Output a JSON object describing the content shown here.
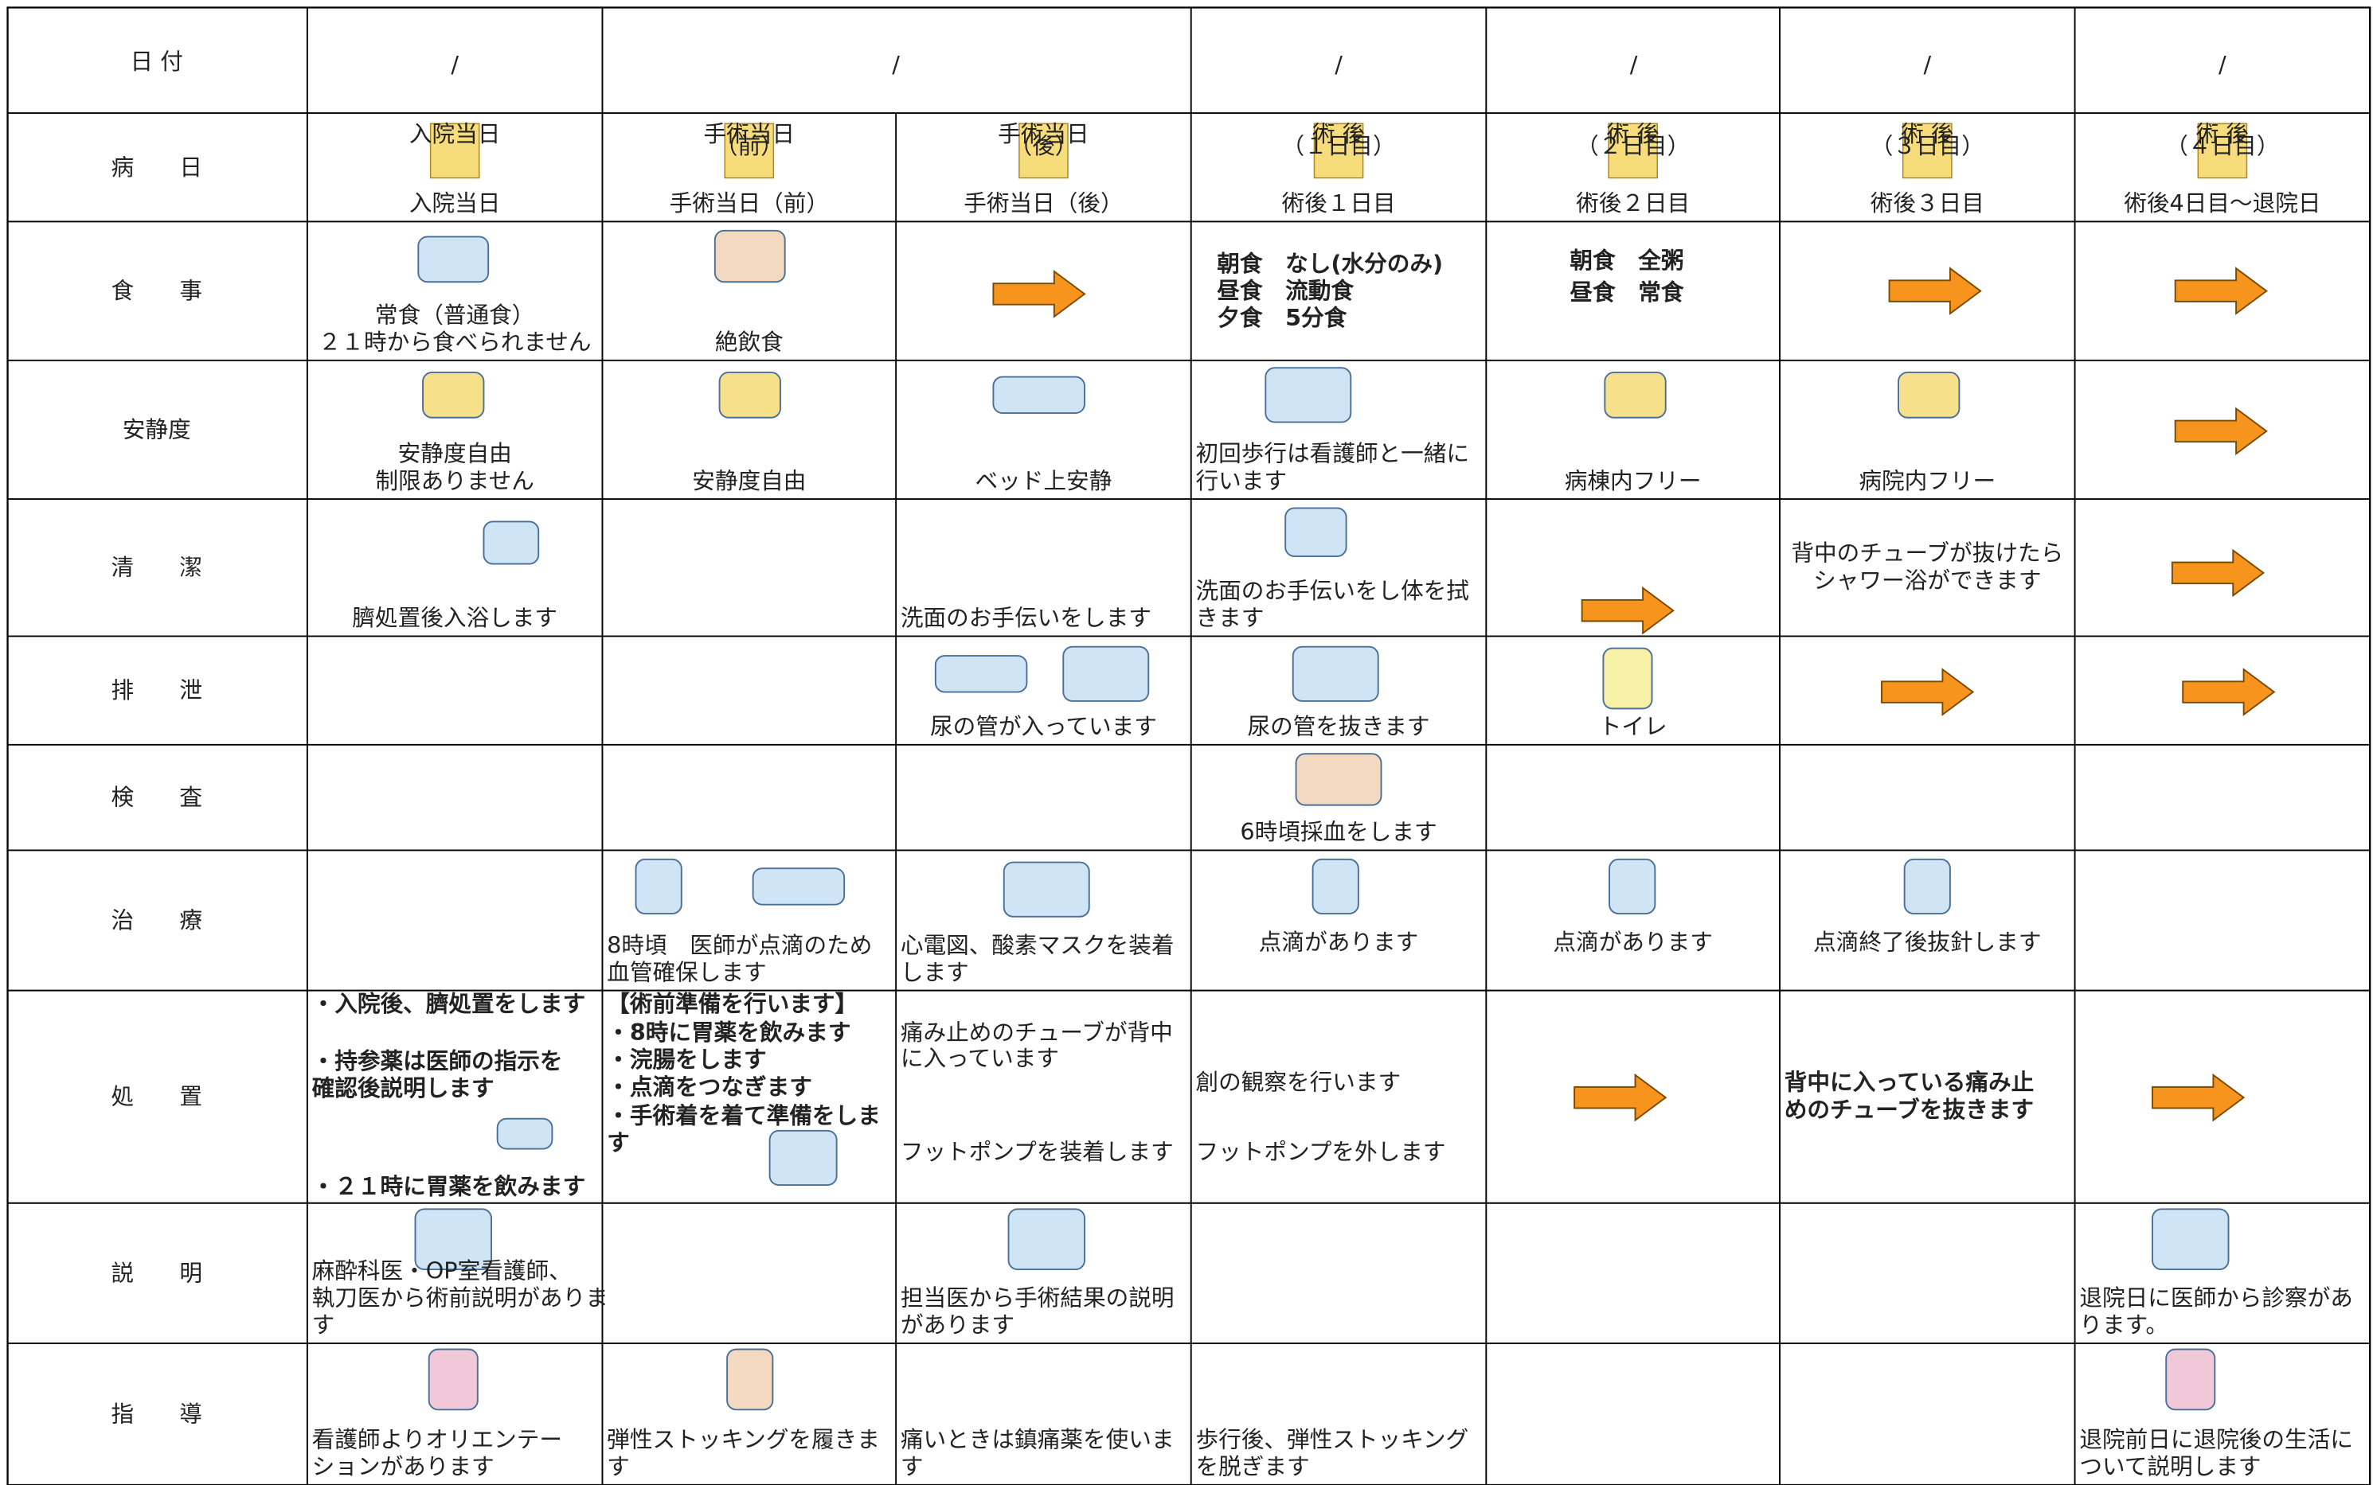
{
  "date": {
    "label": "日 付",
    "cells": [
      "/",
      "/",
      "/",
      "/",
      "/",
      "/"
    ]
  },
  "rows": [
    {
      "label": "病　　日",
      "badges": [
        [
          "入院当日"
        ],
        [
          "手術当日",
          "（前）"
        ],
        [
          "手術当日",
          "（後）"
        ],
        [
          "術 後",
          "（１日目）"
        ],
        [
          "術 後",
          "（２日目）"
        ],
        [
          "術 後",
          "（３日目）"
        ],
        [
          "術 後",
          "（４日目）"
        ]
      ],
      "cells": [
        [
          "入院当日"
        ],
        [
          "手術当日（前）"
        ],
        [
          "手術当日（後）"
        ],
        [
          "術後１日目"
        ],
        [
          "術後２日目"
        ],
        [
          "術後３日目"
        ],
        [
          "術後4日目〜退院日"
        ]
      ]
    },
    {
      "label": "食　　事",
      "cells": [
        [
          "常食（普通食）",
          "２１時から食べられません"
        ],
        [
          "絶飲食"
        ],
        [],
        [
          "朝食　なし(水分のみ)",
          "昼食　流動食",
          "夕食　5分食"
        ],
        [
          "朝食　全粥",
          "昼食　常食"
        ],
        [],
        []
      ]
    },
    {
      "label": "安静度",
      "cells": [
        [
          "安静度自由",
          "制限ありません"
        ],
        [
          "安静度自由"
        ],
        [
          "ベッド上安静"
        ],
        [
          "初回歩行は看護師と一緒に",
          "行います"
        ],
        [
          "病棟内フリー"
        ],
        [
          "病院内フリー"
        ],
        []
      ]
    },
    {
      "label": "清　　潔",
      "cells": [
        [
          "臍処置後入浴します"
        ],
        [],
        [
          "洗面のお手伝いをします"
        ],
        [
          "洗面のお手伝いをし体を拭",
          "きます"
        ],
        [],
        [
          "背中のチューブが抜けたら",
          "シャワー浴ができます"
        ],
        []
      ]
    },
    {
      "label": "排　　泄",
      "cells": [
        [],
        [],
        [
          "尿の管が入っています"
        ],
        [
          "尿の管を抜きます"
        ],
        [
          "トイレ"
        ],
        [],
        []
      ]
    },
    {
      "label": "検　　査",
      "cells": [
        [],
        [],
        [],
        [
          "6時頃採血をします"
        ],
        [],
        [],
        []
      ]
    },
    {
      "label": "治　　療",
      "cells": [
        [],
        [
          "8時頃　医師が点滴のため",
          "血管確保します"
        ],
        [
          "心電図、酸素マスクを装着",
          "します"
        ],
        [
          "点滴があります"
        ],
        [
          "点滴があります"
        ],
        [
          "点滴終了後抜針します"
        ],
        []
      ]
    },
    {
      "label": "処　　置",
      "cells": [
        [
          "・入院後、臍処置をします",
          "・持参薬は医師の指示を",
          "確認後説明します",
          "・２１時に胃薬を飲みます"
        ],
        [
          "【術前準備を行います】",
          "・8時に胃薬を飲みます",
          "・浣腸をします",
          "・点滴をつなぎます",
          "・手術着を着て準備をしま",
          "す"
        ],
        [
          "痛み止めのチューブが背中",
          "に入っています",
          "フットポンプを装着します"
        ],
        [
          "創の観察を行います",
          "フットポンプを外します"
        ],
        [],
        [
          "背中に入っている痛み止",
          "めのチューブを抜きます"
        ],
        []
      ]
    },
    {
      "label": "説　　明",
      "cells": [
        [
          "麻酔科医・OP室看護師、",
          "執刀医から術前説明がありま",
          "す"
        ],
        [],
        [
          "担当医から手術結果の説明",
          "があります"
        ],
        [],
        [],
        [],
        [
          "退院日に医師から診察があ",
          "ります。"
        ]
      ]
    },
    {
      "label": "指　　導",
      "cells": [
        [
          "看護師よりオリエンテー",
          "ションがあります"
        ],
        [
          "弾性ストッキングを履きま",
          "す"
        ],
        [
          "痛いときは鎮痛薬を使いま",
          "す"
        ],
        [
          "歩行後、弾性ストッキング",
          "を脱ぎます"
        ],
        [],
        [],
        [
          "退院前日に退院後の生活に",
          "ついて説明します"
        ]
      ]
    }
  ]
}
